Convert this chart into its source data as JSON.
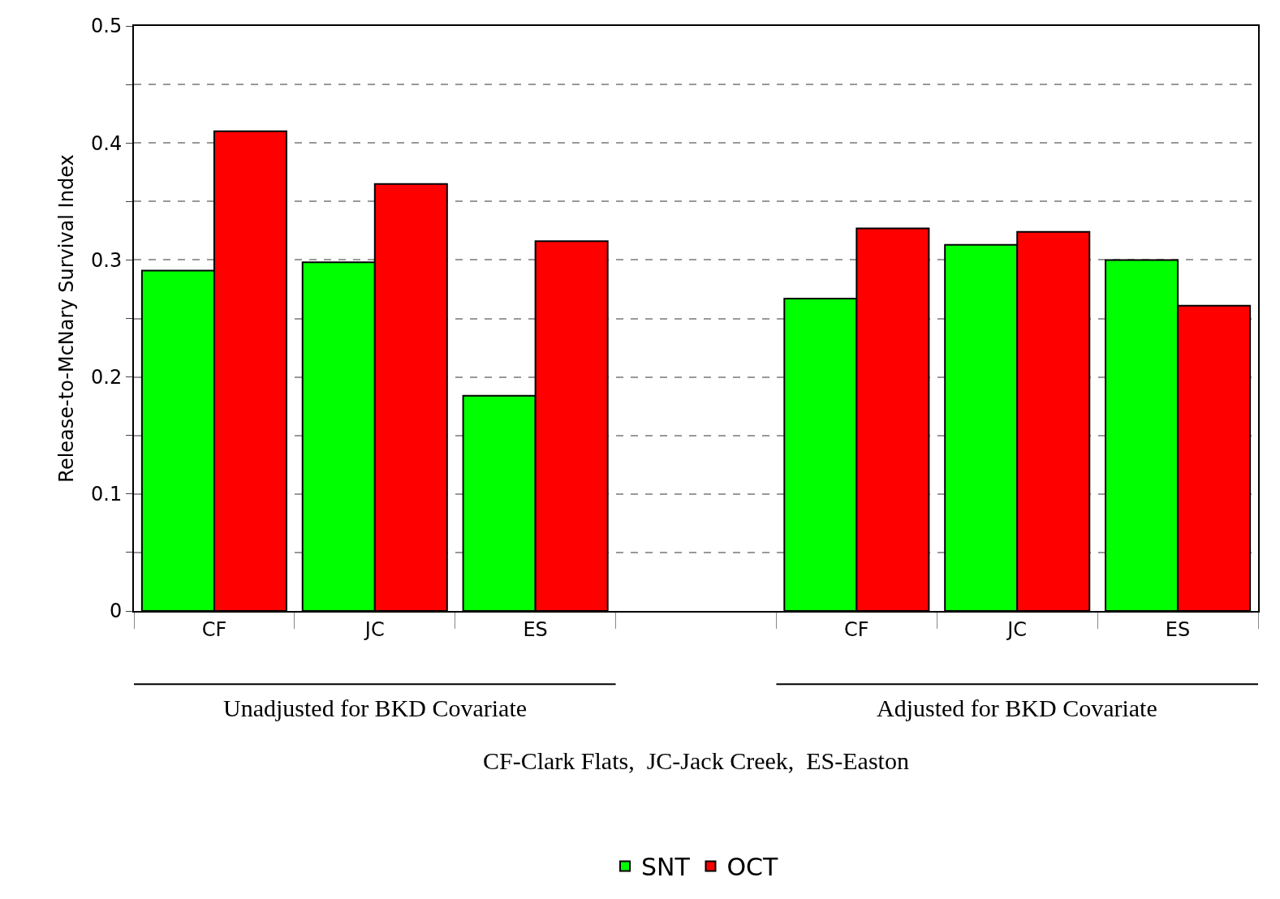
{
  "chart_data": {
    "type": "bar",
    "ylabel": "Release-to-McNary Survival Index",
    "categories": [
      "CF",
      "JC",
      "ES",
      null,
      "CF",
      "JC",
      "ES"
    ],
    "series": [
      {
        "name": "SNT",
        "color": "#00ff00",
        "values": [
          0.291,
          0.298,
          0.184,
          null,
          0.267,
          0.313,
          0.3
        ]
      },
      {
        "name": "OCT",
        "color": "#ff0000",
        "values": [
          0.41,
          0.365,
          0.316,
          null,
          0.327,
          0.324,
          0.261
        ]
      }
    ],
    "ylim": [
      0,
      0.5
    ],
    "yticks": [
      0,
      {
        "value": 0.05,
        "label": null
      },
      0.1,
      {
        "value": 0.15,
        "label": null
      },
      0.2,
      {
        "value": 0.25,
        "label": null
      },
      0.3,
      {
        "value": 0.35,
        "label": null
      },
      0.4,
      {
        "value": 0.45,
        "label": null
      },
      0.5
    ],
    "grid": "y",
    "line_style": "dashed",
    "legend": "bottom",
    "annotations": [
      "Unadjusted for BKD Covariate",
      "Adjusted for BKD Covariate",
      "CF-Clark Flats,  JC-Jack Creek,  ES-Easton"
    ]
  }
}
